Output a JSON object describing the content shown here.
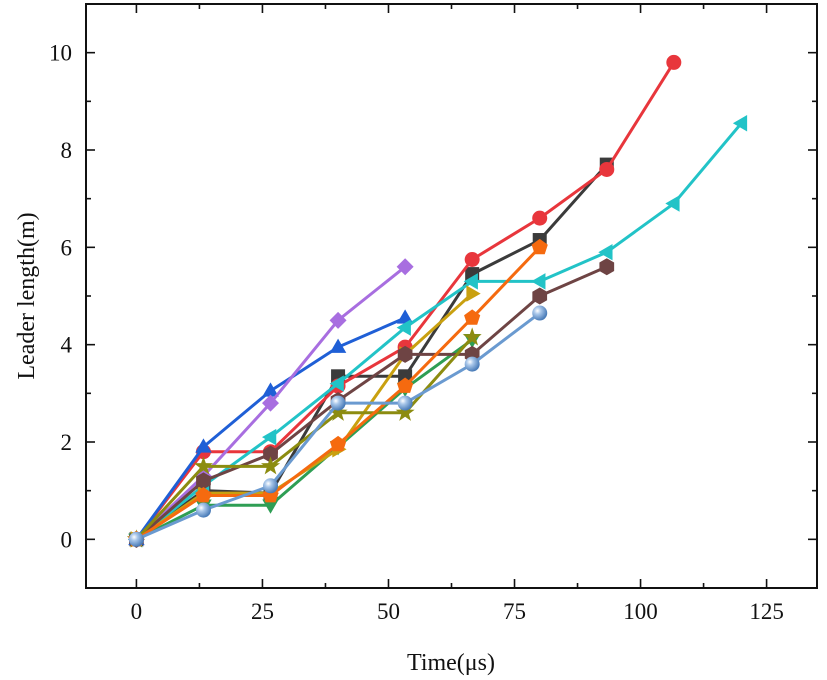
{
  "chart_data": {
    "type": "line",
    "title": "",
    "xlabel": "Time(μs)",
    "ylabel": "Leader length(m)",
    "xlim": [
      -10,
      135
    ],
    "ylim": [
      -1,
      11
    ],
    "xticks": [
      0,
      25,
      50,
      75,
      100,
      125
    ],
    "yticks": [
      0,
      2,
      4,
      6,
      8,
      10
    ],
    "xtick_labels": [
      "0",
      "25",
      "50",
      "75",
      "100",
      "125"
    ],
    "ytick_labels": [
      "0",
      "2",
      "4",
      "6",
      "8",
      "10"
    ],
    "grid": false,
    "legend": "none",
    "series": [
      {
        "name": "series-black-square",
        "color": "#3b3b3b",
        "marker": "square",
        "x": [
          0,
          13.3,
          26.6,
          40,
          53.3,
          66.6,
          80,
          93.3
        ],
        "y": [
          0,
          1.0,
          0.95,
          3.35,
          3.35,
          5.45,
          6.15,
          7.7
        ]
      },
      {
        "name": "series-red-circle",
        "color": "#e8363c",
        "marker": "circle",
        "x": [
          0,
          13.3,
          26.6,
          40,
          53.3,
          66.6,
          80,
          93.3,
          106.6
        ],
        "y": [
          0,
          1.8,
          1.8,
          3.15,
          3.95,
          5.75,
          6.6,
          7.6,
          9.8
        ]
      },
      {
        "name": "series-blue-triangle-up",
        "color": "#1f5fd6",
        "marker": "triangle-up",
        "x": [
          0,
          13.3,
          26.6,
          40,
          53.3
        ],
        "y": [
          0,
          1.9,
          3.05,
          3.95,
          4.55
        ]
      },
      {
        "name": "series-green-triangle-down",
        "color": "#2e9e54",
        "marker": "triangle-down",
        "x": [
          0,
          13.3,
          26.6,
          40,
          53.3,
          66.6
        ],
        "y": [
          0,
          0.7,
          0.7,
          1.9,
          3.1,
          4.1
        ]
      },
      {
        "name": "series-purple-diamond",
        "color": "#a86ee0",
        "marker": "diamond",
        "x": [
          0,
          13.3,
          26.6,
          40,
          53.3
        ],
        "y": [
          0,
          1.3,
          2.8,
          4.5,
          5.6
        ]
      },
      {
        "name": "series-cyan-triangle-left",
        "color": "#22c3c7",
        "marker": "triangle-left",
        "x": [
          0,
          13.3,
          26.6,
          40,
          53.3,
          66.6,
          80,
          93.3,
          106.6,
          120
        ],
        "y": [
          0,
          1.1,
          2.1,
          3.2,
          4.35,
          5.3,
          5.3,
          5.9,
          6.9,
          8.55
        ]
      },
      {
        "name": "series-gold-triangle-right",
        "color": "#c9a00f",
        "marker": "triangle-right",
        "x": [
          0,
          13.3,
          26.6,
          40,
          53.3,
          66.6
        ],
        "y": [
          0,
          0.95,
          0.95,
          1.85,
          3.8,
          5.05
        ]
      },
      {
        "name": "series-brown-hexagon",
        "color": "#6e4444",
        "marker": "hexagon",
        "x": [
          0,
          13.3,
          26.6,
          40,
          53.3,
          66.6,
          80,
          93.3
        ],
        "y": [
          0,
          1.2,
          1.75,
          2.85,
          3.8,
          3.8,
          5.0,
          5.6
        ]
      },
      {
        "name": "series-olive-star",
        "color": "#8c8c10",
        "marker": "star",
        "x": [
          0,
          13.3,
          26.6,
          40,
          53.3,
          66.6
        ],
        "y": [
          0,
          1.5,
          1.5,
          2.6,
          2.6,
          4.15
        ]
      },
      {
        "name": "series-orange-pentagon",
        "color": "#f56a0f",
        "marker": "pentagon",
        "x": [
          0,
          13.3,
          26.6,
          40,
          53.3,
          66.6,
          80
        ],
        "y": [
          0,
          0.9,
          0.9,
          1.95,
          3.15,
          4.55,
          6.0
        ]
      },
      {
        "name": "series-lightblue-sphere",
        "color": "#6a9ad0",
        "marker": "sphere",
        "x": [
          0,
          13.3,
          26.6,
          40,
          53.3,
          66.6,
          80
        ],
        "y": [
          0,
          0.6,
          1.1,
          2.8,
          2.8,
          3.6,
          4.65
        ]
      }
    ]
  }
}
